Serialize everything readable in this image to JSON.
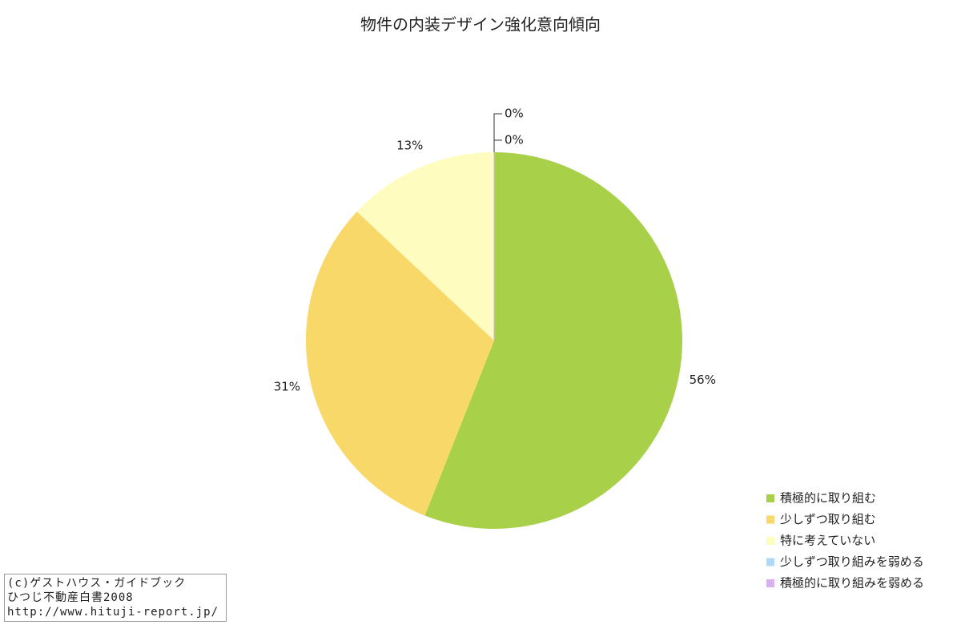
{
  "chart_data": {
    "type": "pie",
    "title": "物件の内装デザイン強化意向傾向",
    "categories": [
      "積極的に取り組む",
      "少しずつ取り組む",
      "特に考えていない",
      "少しずつ取り組みを弱める",
      "積極的に取り組みを弱める"
    ],
    "values": [
      56,
      31,
      13,
      0,
      0
    ],
    "value_labels": [
      "56%",
      "31%",
      "13%",
      "0%",
      "0%"
    ],
    "colors": [
      "#a8d048",
      "#f8d868",
      "#fffcc0",
      "#b0d8f8",
      "#d8b0f0"
    ],
    "legend": "bottom-right",
    "annotations": [
      "(c)ゲストハウス・ガイドブック",
      "ひつじ不動産白書2008",
      "http://www.hituji-report.jp/"
    ]
  }
}
